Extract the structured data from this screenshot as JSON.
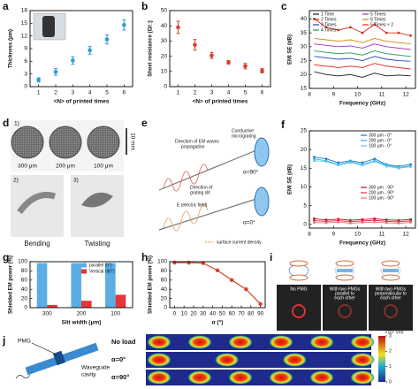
{
  "chart_data": [
    {
      "type": "scatter",
      "panel": "a",
      "xlabel": "<N> of printed times",
      "ylabel": "Thickness (μm)",
      "x": [
        1,
        2,
        3,
        4,
        5,
        6
      ],
      "values": [
        1.6,
        3.5,
        6.2,
        8.6,
        11.2,
        14.6
      ],
      "errors": [
        0.5,
        0.8,
        0.9,
        0.9,
        1.1,
        1.2
      ],
      "color": "#2e9bd6",
      "xlim": [
        0.5,
        6.5
      ],
      "xticks": [
        1,
        2,
        3,
        4,
        5,
        6
      ],
      "ylim": [
        0,
        18
      ],
      "yticks": [
        0,
        3,
        6,
        9,
        12,
        15,
        18
      ]
    },
    {
      "type": "scatter",
      "panel": "b",
      "xlabel": "<N> of printed times",
      "ylabel": "Sheet resistance (Ω/□)",
      "x": [
        1,
        2,
        3,
        4,
        5,
        6
      ],
      "values": [
        39,
        27.5,
        20.5,
        16,
        13.5,
        10.5
      ],
      "errors": [
        4,
        3.5,
        2,
        1.2,
        1.8,
        1.5
      ],
      "color": "#d6402d",
      "xlim": [
        0.5,
        6.5
      ],
      "xticks": [
        1,
        2,
        3,
        4,
        5,
        6
      ],
      "ylim": [
        0,
        50
      ],
      "yticks": [
        0,
        10,
        20,
        30,
        40,
        50
      ]
    },
    {
      "type": "line",
      "panel": "c",
      "xlabel": "Frequency (GHz)",
      "ylabel": "EMI SE (dB)",
      "x": [
        8.2,
        8.7,
        9.2,
        9.7,
        10.2,
        10.7,
        11.2,
        11.7,
        12.2
      ],
      "series": [
        {
          "name": "1 Time",
          "color": "#1a1a1a",
          "values": [
            21,
            20,
            19.5,
            20,
            19,
            20.5,
            19.5,
            19.8,
            19.5
          ]
        },
        {
          "name": "2 Times",
          "color": "#e02020",
          "values": [
            23.5,
            23,
            22.5,
            23,
            22.5,
            24,
            23,
            22.5,
            22
          ]
        },
        {
          "name": "3 Times",
          "color": "#2040d0",
          "values": [
            26.5,
            26,
            25.5,
            25.8,
            25,
            26.5,
            25.5,
            25,
            24.8
          ]
        },
        {
          "name": "4 Times",
          "color": "#1a9a50",
          "values": [
            28.5,
            28,
            27.5,
            27.8,
            27,
            28.5,
            27.5,
            27,
            26.5
          ]
        },
        {
          "name": "5 Times",
          "color": "#9b30c0",
          "values": [
            31,
            30.5,
            30,
            30.3,
            29.5,
            31,
            30,
            29.5,
            29
          ]
        },
        {
          "name": "6 Times",
          "color": "#d08a10",
          "values": [
            33,
            32.5,
            32,
            32.5,
            31.5,
            33,
            32,
            31.5,
            31
          ]
        },
        {
          "name": "5 Times × 2",
          "color": "#d7301f",
          "markers": true,
          "values": [
            40,
            37,
            36,
            37,
            35,
            38,
            35,
            35,
            34
          ]
        }
      ],
      "xlim": [
        8,
        12.4
      ],
      "xticks": [
        8,
        9,
        10,
        11,
        12
      ],
      "ylim": [
        15,
        43
      ],
      "yticks": [
        15,
        20,
        25,
        30,
        35,
        40
      ]
    },
    {
      "type": "line",
      "panel": "f",
      "xlabel": "Frequency (GHz)",
      "ylabel": "EMI SE (dB)",
      "x": [
        8.2,
        8.7,
        9.2,
        9.7,
        10.2,
        10.7,
        11.2,
        11.7,
        12.2
      ],
      "series": [
        {
          "name": "300 μm - 0°",
          "color": "#1e78c8",
          "markers": true,
          "values": [
            18,
            17.5,
            16.5,
            17,
            16.5,
            17.5,
            16,
            15.5,
            16
          ]
        },
        {
          "name": "200 μm - 0°",
          "color": "#3ab0e0",
          "markers": true,
          "values": [
            17.5,
            17,
            16,
            16.8,
            16,
            17,
            15.8,
            15.2,
            15.6
          ]
        },
        {
          "name": "100 μm - 0°",
          "color": "#60c8f0",
          "markers": true,
          "values": [
            17,
            16.8,
            15.8,
            16.5,
            15.8,
            16.8,
            15.5,
            15,
            15.4
          ]
        },
        {
          "name": "300 μm - 90°",
          "color": "#c01020",
          "markers": true,
          "values": [
            1.5,
            1.2,
            1.4,
            1.1,
            1.3,
            1.5,
            1.2,
            1.1,
            1.3
          ]
        },
        {
          "name": "200 μm - 90°",
          "color": "#e03040",
          "markers": true,
          "values": [
            1,
            0.8,
            1,
            0.7,
            0.9,
            1.1,
            0.8,
            0.7,
            0.9
          ]
        },
        {
          "name": "100 μm - 90°",
          "color": "#f07080",
          "markers": true,
          "values": [
            0.5,
            0.4,
            0.6,
            0.3,
            0.5,
            0.6,
            0.4,
            0.3,
            0.5
          ]
        }
      ],
      "xlim": [
        8,
        12.4
      ],
      "xticks": [
        8,
        9,
        10,
        11,
        12
      ],
      "ylim": [
        -1,
        25
      ],
      "yticks": [
        0,
        5,
        10,
        15,
        20,
        25
      ]
    },
    {
      "type": "bar",
      "panel": "g",
      "xlabel": "Slit width (μm)",
      "ylabel": "Shielded EM power (%)",
      "categories": [
        "300",
        "200",
        "100"
      ],
      "series": [
        {
          "name": "parallel (0°)",
          "color": "#5aaee6",
          "values": [
            97,
            97,
            97
          ]
        },
        {
          "name": "Vertical (90°)",
          "color": "#e8333b",
          "values": [
            6,
            15,
            28
          ]
        }
      ],
      "ylim": [
        0,
        100
      ],
      "yticks": [
        0,
        20,
        40,
        60,
        80,
        100
      ]
    },
    {
      "type": "line",
      "panel": "h",
      "xlabel": "α (°)",
      "ylabel": "Shielded EM power (%)",
      "x": [
        0,
        15,
        30,
        45,
        60,
        75,
        90
      ],
      "values": [
        98,
        98,
        97,
        81,
        60,
        40,
        8
      ],
      "color": "#d6402d",
      "markers": true,
      "xlim": [
        -5,
        95
      ],
      "xticks": [
        0,
        10,
        20,
        30,
        40,
        50,
        60,
        70,
        80,
        90
      ],
      "ylim": [
        0,
        100
      ],
      "yticks": [
        0,
        20,
        40,
        60,
        80,
        100
      ]
    }
  ],
  "figure": {
    "d": {
      "panel": "d",
      "labels": [
        "1)",
        "300 μm",
        "200 μm",
        "100 μm",
        "10 mm",
        "2)",
        "3)",
        "Bending",
        "Twisting"
      ]
    },
    "e": {
      "panel": "e",
      "labels": [
        "Direction of EM waves",
        "propagation",
        "Conductive",
        "micrograting",
        "α=90°",
        "Direction of",
        "grating slit",
        "E (electric field)",
        "α=0°",
        "surface current density"
      ]
    },
    "i": {
      "panel": "i",
      "captions": [
        [
          "No PMG"
        ],
        [
          "With two PMGs",
          "parallel to",
          "each other"
        ],
        [
          "With two PMGs",
          "perpendicular to",
          "each other"
        ]
      ]
    },
    "j": {
      "panel": "j",
      "labels": [
        "PMG",
        "Waveguide",
        "cavity"
      ],
      "rows": [
        "No load",
        "α=0°",
        "α=90°"
      ],
      "colorbar": {
        "ticks": [
          0,
          1,
          2,
          3
        ],
        "unit": "×10⁴ V/m"
      }
    }
  }
}
